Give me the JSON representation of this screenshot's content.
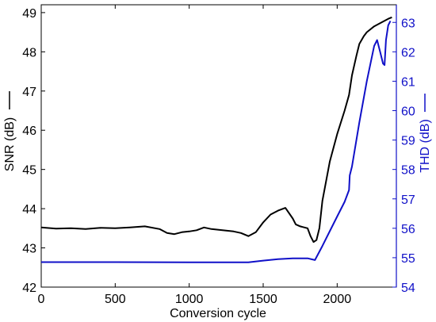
{
  "chart_data": {
    "type": "line",
    "xlabel": "Conversion cycle",
    "ylabel_left": "SNR (dB)",
    "ylabel_right": "THD (dB)",
    "xlim": [
      0,
      2400
    ],
    "ylim_left": [
      42,
      49.2
    ],
    "ylim_right": [
      54,
      63.6
    ],
    "x_ticks": [
      0,
      500,
      1000,
      1500,
      2000
    ],
    "y_ticks_left": [
      42,
      43,
      44,
      45,
      46,
      47,
      48,
      49
    ],
    "y_ticks_right": [
      54,
      55,
      56,
      57,
      58,
      59,
      60,
      61,
      62,
      63
    ],
    "grid": false,
    "colors": {
      "snr": "#000000",
      "thd": "#1010c8",
      "axis": "#000000"
    },
    "series": [
      {
        "axis": "left",
        "x": [
          0,
          100,
          200,
          300,
          400,
          500,
          600,
          700,
          800,
          850,
          900,
          950,
          1000,
          1050,
          1100,
          1150,
          1200,
          1250,
          1300,
          1350,
          1400,
          1450,
          1500,
          1550,
          1600,
          1650,
          1700,
          1720,
          1750,
          1800,
          1820,
          1840,
          1860,
          1880,
          1900,
          1950,
          2000,
          2050,
          2080,
          2100,
          2130,
          2150,
          2180,
          2200,
          2250,
          2300,
          2350,
          2370
        ],
        "y": [
          43.52,
          43.49,
          43.5,
          43.48,
          43.51,
          43.5,
          43.52,
          43.55,
          43.48,
          43.38,
          43.35,
          43.4,
          43.42,
          43.45,
          43.52,
          43.48,
          43.46,
          43.44,
          43.42,
          43.38,
          43.3,
          43.4,
          43.65,
          43.85,
          43.95,
          44.02,
          43.75,
          43.6,
          43.55,
          43.5,
          43.3,
          43.15,
          43.2,
          43.5,
          44.2,
          45.2,
          45.9,
          46.5,
          46.9,
          47.4,
          47.9,
          48.2,
          48.4,
          48.5,
          48.65,
          48.75,
          48.85,
          48.88
        ]
      },
      {
        "axis": "right",
        "x": [
          0,
          500,
          1000,
          1400,
          1500,
          1600,
          1700,
          1800,
          1850,
          1900,
          1950,
          2000,
          2050,
          2080,
          2085,
          2100,
          2150,
          2200,
          2250,
          2270,
          2290,
          2310,
          2320,
          2330,
          2345,
          2360
        ],
        "y": [
          54.85,
          54.85,
          54.84,
          54.84,
          54.9,
          54.95,
          54.98,
          54.98,
          54.92,
          55.4,
          55.9,
          56.4,
          56.9,
          57.3,
          57.8,
          58.1,
          59.6,
          61.0,
          62.2,
          62.4,
          62.0,
          61.6,
          61.55,
          62.4,
          62.9,
          63.05
        ]
      }
    ]
  }
}
